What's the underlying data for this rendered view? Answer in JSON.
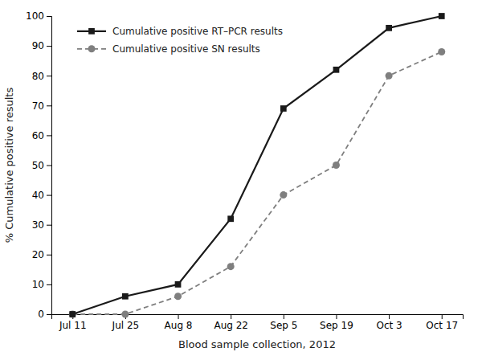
{
  "chart_data": {
    "type": "line",
    "xlabel": "Blood sample collection, 2012",
    "ylabel": "% Cumulative positive results",
    "categories": [
      "Jul 11",
      "Jul 25",
      "Aug 8",
      "Aug 22",
      "Sep 5",
      "Sep 19",
      "Oct 3",
      "Oct 17"
    ],
    "series": [
      {
        "name": "Cumulative positive RT–PCR results",
        "color": "#1a1a1a",
        "marker": "square",
        "line_style": "solid",
        "values": [
          0,
          6,
          10,
          32,
          69,
          82,
          96,
          100
        ]
      },
      {
        "name": "Cumulative positive SN results",
        "color": "#7f7f7f",
        "marker": "circle",
        "line_style": "dashed",
        "values": [
          0,
          0,
          6,
          16,
          40,
          50,
          80,
          88
        ]
      }
    ],
    "ylim": [
      0,
      100
    ],
    "yticks": [
      0,
      10,
      20,
      30,
      40,
      50,
      60,
      70,
      80,
      90,
      100
    ],
    "legend": "upper left",
    "grid": false
  }
}
